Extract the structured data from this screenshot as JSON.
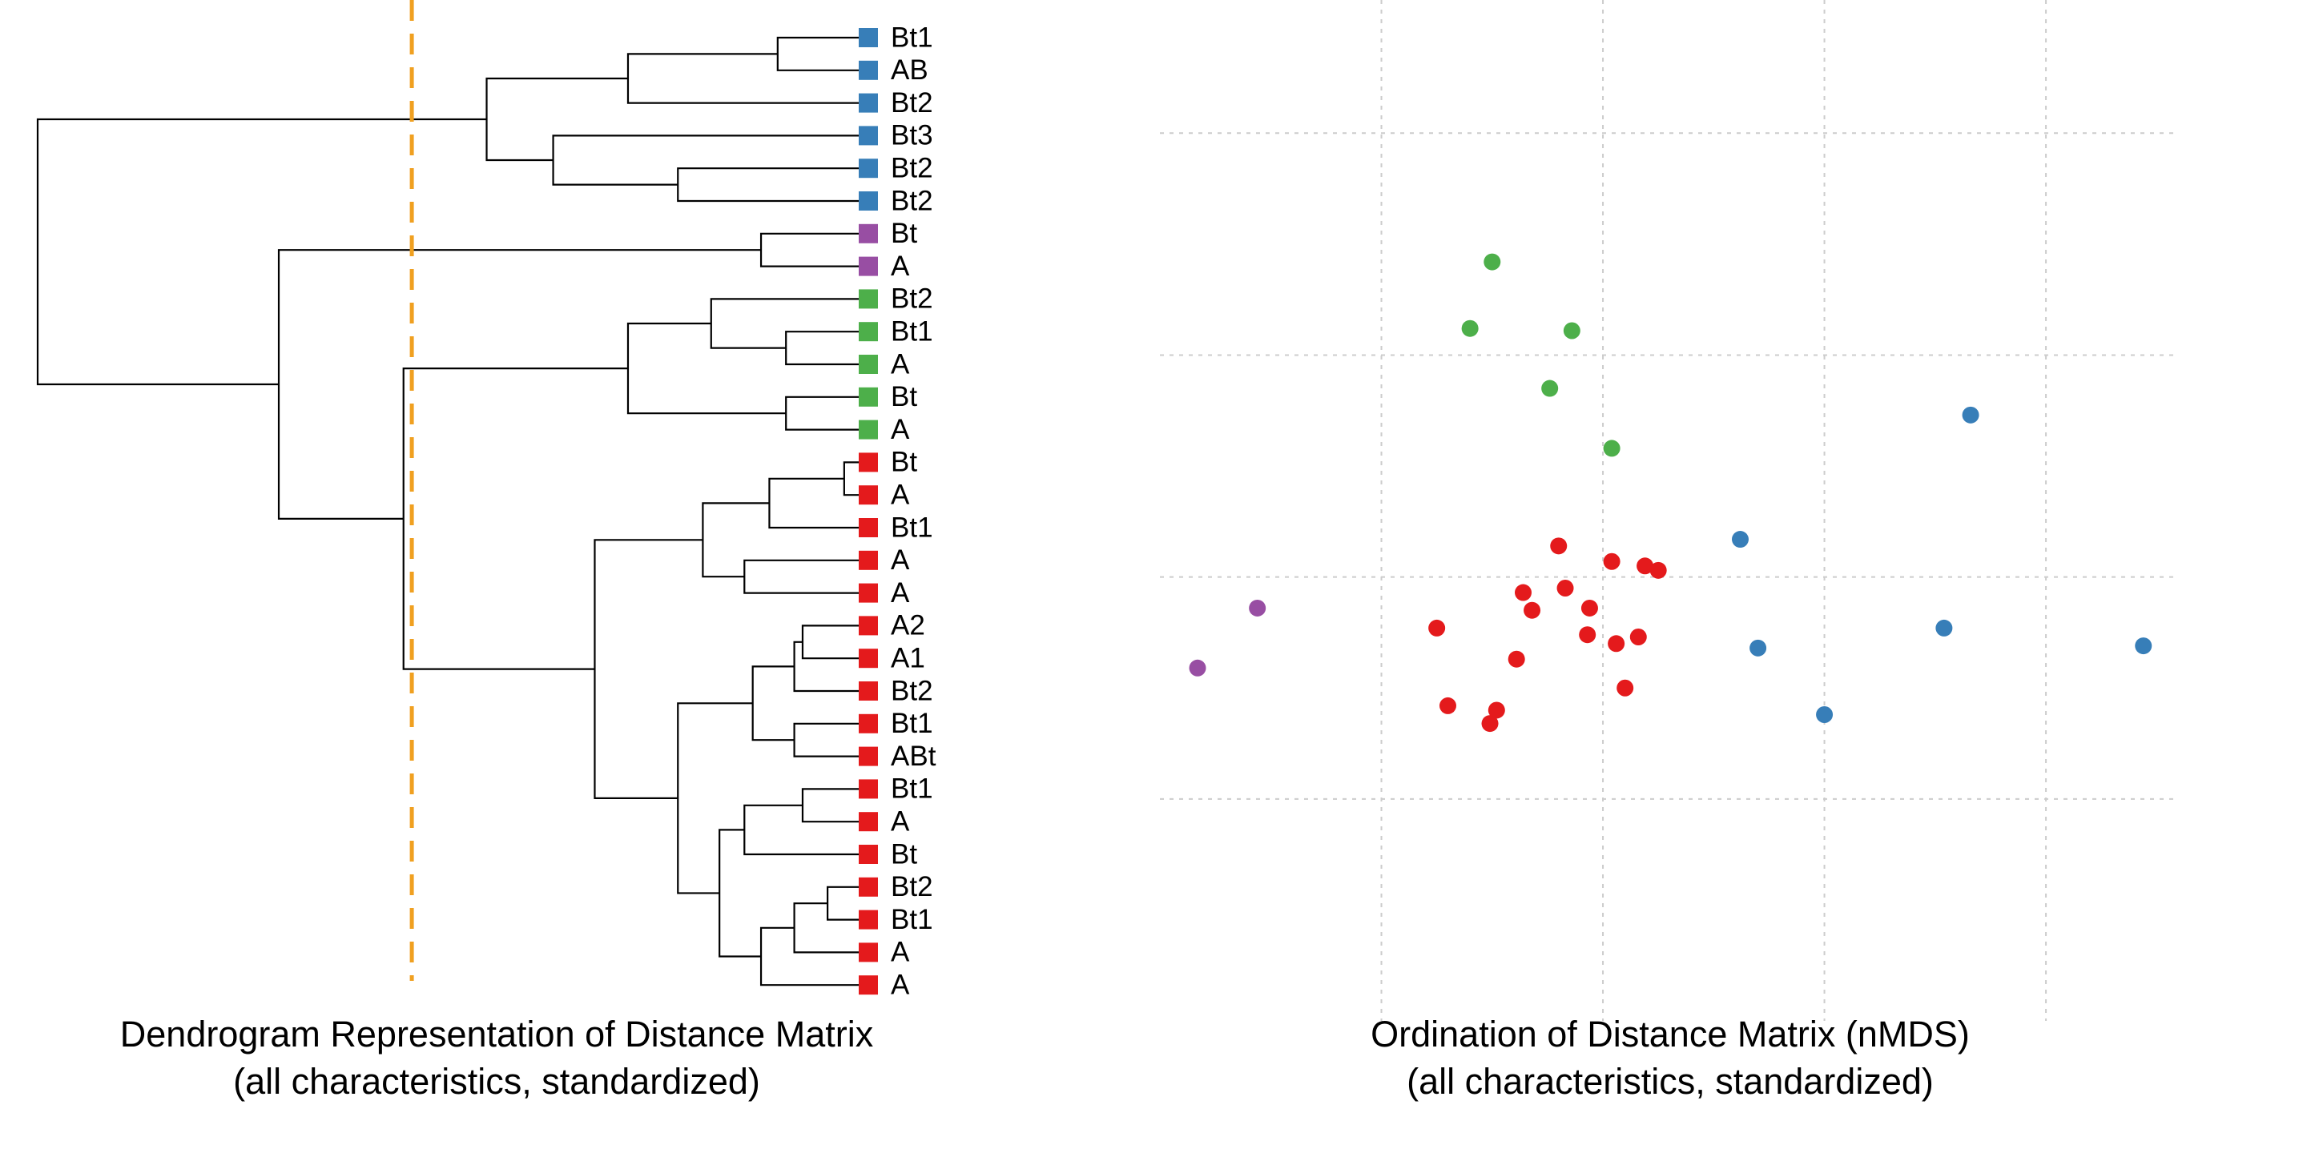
{
  "colors": {
    "blue": "#377EB8",
    "purple": "#984EA3",
    "green": "#4DAF4A",
    "red": "#E41A1C",
    "cut_line": "#F0A020",
    "grid": "#CCCCCC",
    "branch": "#000000"
  },
  "chart_data": [
    {
      "type": "dendrogram",
      "title": "Dendrogram Representation of Distance Matrix",
      "subtitle": "(all characteristics, standardized)",
      "height_axis": {
        "range": [
          0,
          10
        ],
        "direction": "right-to-left"
      },
      "cut_height": 5.5,
      "leaves": [
        {
          "label": "Bt1",
          "group": "blue"
        },
        {
          "label": "AB",
          "group": "blue"
        },
        {
          "label": "Bt2",
          "group": "blue"
        },
        {
          "label": "Bt3",
          "group": "blue"
        },
        {
          "label": "Bt2",
          "group": "blue"
        },
        {
          "label": "Bt2",
          "group": "blue"
        },
        {
          "label": "Bt",
          "group": "purple"
        },
        {
          "label": "A",
          "group": "purple"
        },
        {
          "label": "Bt2",
          "group": "green"
        },
        {
          "label": "Bt1",
          "group": "green"
        },
        {
          "label": "A",
          "group": "green"
        },
        {
          "label": "Bt",
          "group": "green"
        },
        {
          "label": "A",
          "group": "green"
        },
        {
          "label": "Bt",
          "group": "red"
        },
        {
          "label": "A",
          "group": "red"
        },
        {
          "label": "Bt1",
          "group": "red"
        },
        {
          "label": "A",
          "group": "red"
        },
        {
          "label": "A",
          "group": "red"
        },
        {
          "label": "A2",
          "group": "red"
        },
        {
          "label": "A1",
          "group": "red"
        },
        {
          "label": "Bt2",
          "group": "red"
        },
        {
          "label": "Bt1",
          "group": "red"
        },
        {
          "label": "ABt",
          "group": "red"
        },
        {
          "label": "Bt1",
          "group": "red"
        },
        {
          "label": "A",
          "group": "red"
        },
        {
          "label": "Bt",
          "group": "red"
        },
        {
          "label": "Bt2",
          "group": "red"
        },
        {
          "label": "Bt1",
          "group": "red"
        },
        {
          "label": "A",
          "group": "red"
        },
        {
          "label": "A",
          "group": "red"
        }
      ],
      "merges": [
        {
          "a": "L0",
          "b": "L1",
          "height": 1.1
        },
        {
          "a": "N0",
          "b": "L2",
          "height": 2.9
        },
        {
          "a": "L4",
          "b": "L5",
          "height": 2.3
        },
        {
          "a": "L3",
          "b": "N2",
          "height": 3.8
        },
        {
          "a": "N1",
          "b": "N3",
          "height": 4.6
        },
        {
          "a": "L6",
          "b": "L7",
          "height": 1.3
        },
        {
          "a": "L9",
          "b": "L10",
          "height": 1.0
        },
        {
          "a": "L8",
          "b": "N6",
          "height": 1.9
        },
        {
          "a": "L11",
          "b": "L12",
          "height": 1.0
        },
        {
          "a": "N7",
          "b": "N8",
          "height": 2.9
        },
        {
          "a": "L13",
          "b": "L14",
          "height": 0.3
        },
        {
          "a": "N10",
          "b": "L15",
          "height": 1.2
        },
        {
          "a": "L16",
          "b": "L17",
          "height": 1.5
        },
        {
          "a": "N11",
          "b": "N12",
          "height": 2.0
        },
        {
          "a": "L18",
          "b": "L19",
          "height": 0.8
        },
        {
          "a": "N14",
          "b": "L20",
          "height": 0.9
        },
        {
          "a": "L21",
          "b": "L22",
          "height": 0.9
        },
        {
          "a": "N15",
          "b": "N16",
          "height": 1.4
        },
        {
          "a": "L23",
          "b": "L24",
          "height": 0.8
        },
        {
          "a": "N18",
          "b": "L25",
          "height": 1.5
        },
        {
          "a": "L26",
          "b": "L27",
          "height": 0.5
        },
        {
          "a": "N20",
          "b": "L28",
          "height": 0.9
        },
        {
          "a": "N21",
          "b": "L29",
          "height": 1.3
        },
        {
          "a": "N19",
          "b": "N22",
          "height": 1.8
        },
        {
          "a": "N17",
          "b": "N23",
          "height": 2.3
        },
        {
          "a": "N13",
          "b": "N24",
          "height": 3.3
        },
        {
          "a": "N9",
          "b": "N25",
          "height": 5.6
        },
        {
          "a": "N5",
          "b": "N26",
          "height": 7.1
        },
        {
          "a": "N4",
          "b": "N27",
          "height": 10.0
        }
      ]
    },
    {
      "type": "scatter",
      "title": "Ordination of Distance Matrix (nMDS)",
      "subtitle": "(all characteristics, standardized)",
      "xlim": [
        -1.0,
        1.3
      ],
      "ylim": [
        -1.0,
        1.3
      ],
      "x_grid": [
        -0.5,
        0.0,
        0.5,
        1.0
      ],
      "y_grid": [
        -0.5,
        0.0,
        0.5,
        1.0
      ],
      "grid": true,
      "points": [
        {
          "group": "green",
          "x": -0.25,
          "y": 0.71
        },
        {
          "group": "green",
          "x": -0.3,
          "y": 0.56
        },
        {
          "group": "green",
          "x": -0.07,
          "y": 0.555
        },
        {
          "group": "green",
          "x": -0.12,
          "y": 0.425
        },
        {
          "group": "green",
          "x": 0.02,
          "y": 0.29
        },
        {
          "group": "blue",
          "x": 0.83,
          "y": 0.365
        },
        {
          "group": "blue",
          "x": 0.31,
          "y": 0.085
        },
        {
          "group": "blue",
          "x": 0.35,
          "y": -0.16
        },
        {
          "group": "blue",
          "x": 0.77,
          "y": -0.115
        },
        {
          "group": "blue",
          "x": 1.22,
          "y": -0.155
        },
        {
          "group": "blue",
          "x": 0.5,
          "y": -0.31
        },
        {
          "group": "purple",
          "x": -0.78,
          "y": -0.07
        },
        {
          "group": "purple",
          "x": -0.915,
          "y": -0.205
        },
        {
          "group": "red",
          "x": -0.1,
          "y": 0.07
        },
        {
          "group": "red",
          "x": 0.02,
          "y": 0.035
        },
        {
          "group": "red",
          "x": 0.095,
          "y": 0.025
        },
        {
          "group": "red",
          "x": 0.125,
          "y": 0.015
        },
        {
          "group": "red",
          "x": -0.18,
          "y": -0.035
        },
        {
          "group": "red",
          "x": -0.085,
          "y": -0.025
        },
        {
          "group": "red",
          "x": -0.16,
          "y": -0.075
        },
        {
          "group": "red",
          "x": -0.03,
          "y": -0.07
        },
        {
          "group": "red",
          "x": -0.375,
          "y": -0.115
        },
        {
          "group": "red",
          "x": -0.035,
          "y": -0.13
        },
        {
          "group": "red",
          "x": 0.03,
          "y": -0.15
        },
        {
          "group": "red",
          "x": 0.08,
          "y": -0.135
        },
        {
          "group": "red",
          "x": -0.195,
          "y": -0.185
        },
        {
          "group": "red",
          "x": 0.05,
          "y": -0.25
        },
        {
          "group": "red",
          "x": -0.35,
          "y": -0.29
        },
        {
          "group": "red",
          "x": -0.24,
          "y": -0.3
        },
        {
          "group": "red",
          "x": -0.255,
          "y": -0.33
        }
      ]
    }
  ]
}
